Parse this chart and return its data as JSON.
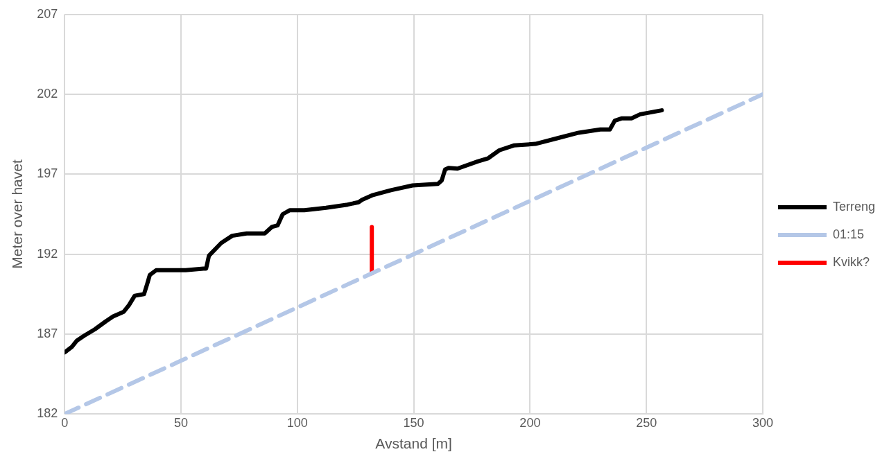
{
  "chart_data": {
    "type": "line",
    "xlabel": "Avstand [m]",
    "ylabel": "Meter over havet",
    "xlim": [
      0,
      300
    ],
    "xticks": [
      0,
      50,
      100,
      150,
      200,
      250,
      300
    ],
    "ylim": [
      182,
      207
    ],
    "yticks": [
      182,
      187,
      192,
      197,
      202,
      207
    ],
    "grid": true,
    "legend": "right",
    "marker": "none",
    "series": [
      {
        "name": "Terreng",
        "color": "#000000",
        "line_style": "solid",
        "x": [
          0,
          3.1,
          5.3,
          8.4,
          13,
          17.7,
          20.8,
          25.4,
          27.6,
          30.1,
          34.1,
          35.4,
          36.6,
          39.4,
          47.2,
          52,
          59.6,
          60.8,
          62,
          67.3,
          72,
          78.2,
          86,
          89,
          91.5,
          93.7,
          96.8,
          103,
          112.3,
          121.6,
          126.3,
          127.8,
          132.5,
          140.2,
          149.5,
          160.4,
          162,
          163.5,
          165,
          168.8,
          177.5,
          182,
          186.8,
          193,
          202.3,
          211.6,
          220.9,
          230.2,
          234.3,
          236.4,
          239.5,
          243.6,
          247.3,
          256.6
        ],
        "values": [
          185.85,
          186.2,
          186.6,
          186.9,
          187.3,
          187.8,
          188.1,
          188.4,
          188.8,
          189.4,
          189.5,
          190.1,
          190.7,
          191,
          191,
          191,
          191.1,
          191.1,
          191.9,
          192.7,
          193.15,
          193.3,
          193.3,
          193.7,
          193.8,
          194.5,
          194.75,
          194.75,
          194.9,
          195.1,
          195.25,
          195.4,
          195.7,
          196,
          196.3,
          196.4,
          196.6,
          197.3,
          197.4,
          197.35,
          197.8,
          198,
          198.5,
          198.8,
          198.9,
          199.25,
          199.6,
          199.8,
          199.8,
          200.35,
          200.5,
          200.5,
          200.75,
          201
        ]
      },
      {
        "name": "01:15",
        "color": "#b4c7e7",
        "line_style": "dashed",
        "x": [
          0,
          300
        ],
        "values": [
          182,
          202
        ]
      },
      {
        "name": "Kvikk?",
        "color": "#ff0000",
        "line_style": "solid",
        "x": [
          132,
          132
        ],
        "values": [
          190.8,
          193.7
        ]
      }
    ]
  }
}
